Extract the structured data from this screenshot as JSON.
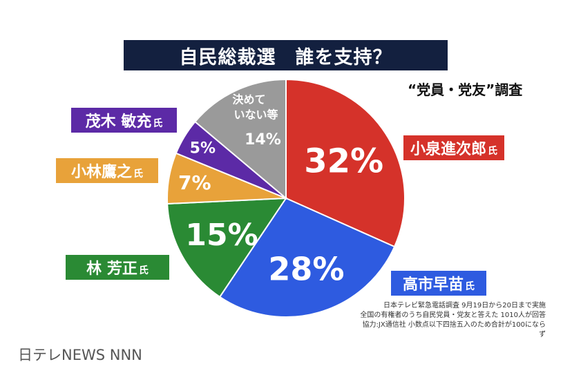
{
  "title": "自民総裁選　誰を支持？",
  "subtitle": "“党員・党友”調査",
  "labels": {
    "koizumi": "小泉進次郎",
    "takaichi": "高市早苗",
    "hayashi": "林 芳正",
    "kobayashi": "小林鷹之",
    "motegi": "茂木 敏充",
    "honorific": "氏"
  },
  "notes": [
    "日本テレビ緊急電話調査  9月19日から20日まで実施",
    "全国の有権者のうち自民党員・党友と答えた  1010人が回答",
    "協力:JX通信社  小数点以下四捨五入のため合計が100にならず"
  ],
  "credit": "日テレNEWS NNN",
  "chart_data": {
    "type": "pie",
    "start": "12 o'clock",
    "direction": "clockwise",
    "slices": [
      {
        "name": "小泉進次郎",
        "value": 32,
        "label": "32%",
        "color": "#d5322a"
      },
      {
        "name": "高市早苗",
        "value": 28,
        "label": "28%",
        "color": "#2e5be0"
      },
      {
        "name": "林 芳正",
        "value": 15,
        "label": "15%",
        "color": "#2a8a34"
      },
      {
        "name": "小林鷹之",
        "value": 7,
        "label": "7%",
        "color": "#e8a23a"
      },
      {
        "name": "茂木 敏充",
        "value": 5,
        "label": "5%",
        "color": "#5c2aa6"
      },
      {
        "name": "決めていない等",
        "value": 14,
        "label": "14%",
        "color": "#9a9a9a",
        "name_lines": [
          "決めて",
          "いない等"
        ]
      }
    ]
  }
}
